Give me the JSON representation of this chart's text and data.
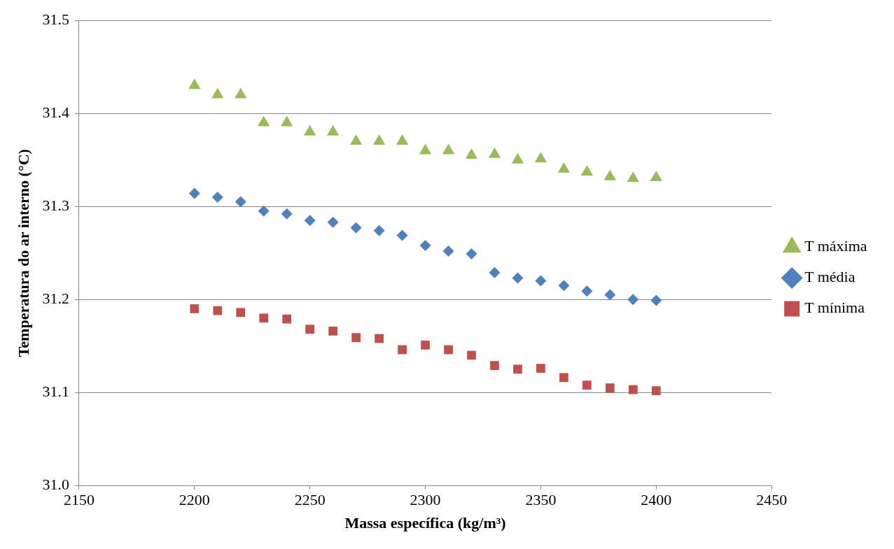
{
  "chart_data": {
    "type": "scatter",
    "xlabel": "Massa específica (kg/m³)",
    "ylabel": "Temperatura do ar interno (°C)",
    "x": [
      2200,
      2210,
      2220,
      2230,
      2240,
      2250,
      2260,
      2270,
      2280,
      2290,
      2300,
      2310,
      2320,
      2330,
      2340,
      2350,
      2360,
      2370,
      2380,
      2390,
      2400
    ],
    "series": [
      {
        "name": "T máxima",
        "color": "#9bbb59",
        "marker": "triangle",
        "values": [
          31.43,
          31.42,
          31.42,
          31.39,
          31.39,
          31.38,
          31.38,
          31.37,
          31.37,
          31.37,
          31.36,
          31.36,
          31.355,
          31.356,
          31.35,
          31.351,
          31.34,
          31.337,
          31.332,
          31.33,
          31.331
        ]
      },
      {
        "name": "T média",
        "color": "#4f81bd",
        "marker": "diamond",
        "values": [
          31.314,
          31.31,
          31.305,
          31.295,
          31.292,
          31.285,
          31.283,
          31.277,
          31.274,
          31.269,
          31.258,
          31.252,
          31.249,
          31.229,
          31.223,
          31.22,
          31.215,
          31.209,
          31.205,
          31.2,
          31.199
        ]
      },
      {
        "name": "T mínima",
        "color": "#c0504d",
        "marker": "square",
        "values": [
          31.19,
          31.188,
          31.186,
          31.18,
          31.179,
          31.168,
          31.166,
          31.159,
          31.158,
          31.146,
          31.151,
          31.146,
          31.14,
          31.129,
          31.125,
          31.126,
          31.116,
          31.108,
          31.105,
          31.103,
          31.102
        ]
      }
    ],
    "xlim": [
      2150,
      2450
    ],
    "xticks": [
      2150,
      2200,
      2250,
      2300,
      2350,
      2400,
      2450
    ],
    "ylim": [
      31,
      31.5
    ],
    "yticks": [
      {
        "value": 31,
        "label": "31.0"
      },
      31.1,
      31.2,
      31.3,
      31.4,
      31.5
    ],
    "grid": "y",
    "legend": "right"
  }
}
